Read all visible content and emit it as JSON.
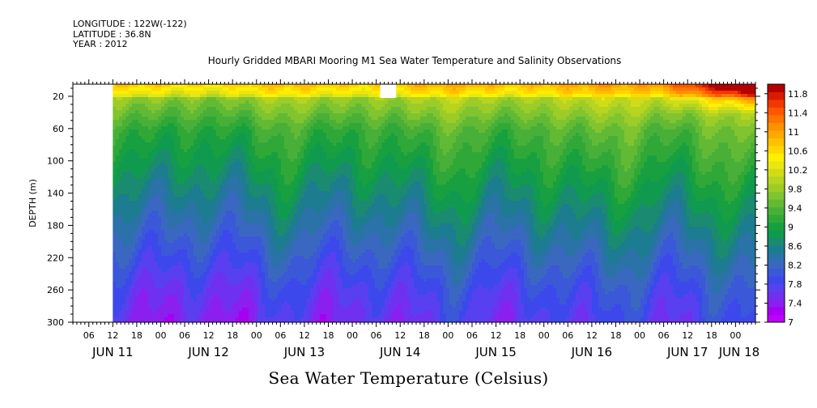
{
  "header": {
    "longitude": "LONGITUDE : 122W(-122)",
    "latitude": "LATITUDE : 36.8N",
    "year": "YEAR : 2012"
  },
  "chart_title": "Hourly Gridded MBARI Mooring M1 Sea Water Temperature and Salinity Observations",
  "footer_title": "Sea Water Temperature (Celsius)",
  "chart_data": {
    "type": "heatmap",
    "title": "Hourly Gridded MBARI Mooring M1 Sea Water Temperature and Salinity Observations",
    "variable": "Sea Water Temperature (Celsius)",
    "ylabel": "DEPTH (m)",
    "ylim": [
      300,
      5
    ],
    "y_ticks": [
      20,
      60,
      100,
      140,
      180,
      220,
      260,
      300
    ],
    "x_range": [
      "2012-06-11 02:00",
      "2012-06-18 05:00"
    ],
    "data_start": "2012-06-11 12:00",
    "x_hour_ticks": [
      "06",
      "12",
      "18",
      "00",
      "06",
      "12",
      "18",
      "00",
      "06",
      "12",
      "18",
      "00",
      "06",
      "12",
      "18",
      "00",
      "06",
      "12",
      "18",
      "00",
      "06",
      "12",
      "18",
      "00",
      "06",
      "12",
      "18",
      "00",
      "06",
      "12",
      "18",
      "00"
    ],
    "x_day_labels": [
      "JUN 11",
      "JUN 12",
      "JUN 13",
      "JUN 14",
      "JUN 15",
      "JUN 16",
      "JUN 17",
      "JUN 18"
    ],
    "colorbar": {
      "min": 7.0,
      "max": 12.0,
      "step": 0.2,
      "tick_labels": [
        "7",
        "7.4",
        "7.8",
        "8.2",
        "8.6",
        "9",
        "9.4",
        "9.8",
        "10.2",
        "10.6",
        "11",
        "11.4",
        "11.8"
      ],
      "colors": [
        "#c000ff",
        "#a600f0",
        "#8a1ff0",
        "#7030f0",
        "#5840f0",
        "#3c48ec",
        "#3a58d8",
        "#3a68c0",
        "#2a72a8",
        "#1c7c90",
        "#1a8a70",
        "#109a50",
        "#18a040",
        "#30a838",
        "#48b038",
        "#62ba34",
        "#80c430",
        "#9ccc28",
        "#b6d420",
        "#d0dc18",
        "#eae614",
        "#fff000",
        "#ffd800",
        "#ffc000",
        "#ffa800",
        "#ff9000",
        "#ff7400",
        "#ff5600",
        "#f03800",
        "#d81c00",
        "#b40000"
      ]
    },
    "depth_profile": [
      {
        "depth": 5,
        "temp": 10.2
      },
      {
        "depth": 20,
        "temp": 9.7
      },
      {
        "depth": 60,
        "temp": 9.1
      },
      {
        "depth": 100,
        "temp": 8.8
      },
      {
        "depth": 140,
        "temp": 8.5
      },
      {
        "depth": 180,
        "temp": 8.2
      },
      {
        "depth": 220,
        "temp": 7.9
      },
      {
        "depth": 260,
        "temp": 7.6
      },
      {
        "depth": 300,
        "temp": 7.4
      }
    ],
    "missing_data": [
      {
        "from": "2012-06-11 02:00",
        "to": "2012-06-11 12:00",
        "depth_from": 5,
        "depth_to": 300
      },
      {
        "from": "2012-06-14 07:00",
        "to": "2012-06-14 11:00",
        "depth_from": 5,
        "depth_to": 22
      }
    ]
  }
}
